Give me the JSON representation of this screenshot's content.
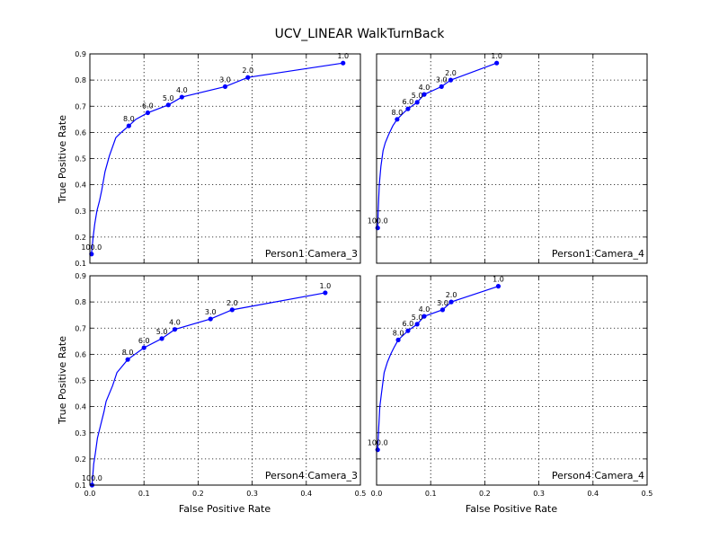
{
  "title": "UCV_LINEAR WalkTurnBack",
  "xlabel": "False Positive Rate",
  "ylabel": "True Positive Rate",
  "chart_data": [
    {
      "type": "line",
      "panel_label": "Person1 Camera_3",
      "xlim": [
        0,
        0.5
      ],
      "ylim": [
        0.1,
        0.9
      ],
      "x_ticks": [
        0,
        0.1,
        0.2,
        0.3,
        0.4,
        0.5
      ],
      "x_tick_labels": [],
      "y_ticks": [
        0.1,
        0.2,
        0.3,
        0.4,
        0.5,
        0.6,
        0.7,
        0.8,
        0.9
      ],
      "y_tick_labels": [
        "0.1",
        "0.2",
        "0.3",
        "0.4",
        "0.5",
        "0.6",
        "0.7",
        "0.8",
        "0.9"
      ],
      "grid": true,
      "color": "#0000ff",
      "x": [
        0.003,
        0.006,
        0.009,
        0.013,
        0.018,
        0.022,
        0.028,
        0.036,
        0.048,
        0.058,
        0.072,
        0.085,
        0.107,
        0.145,
        0.17,
        0.25,
        0.292,
        0.468
      ],
      "y": [
        0.135,
        0.2,
        0.25,
        0.3,
        0.34,
        0.38,
        0.45,
        0.51,
        0.58,
        0.6,
        0.625,
        0.65,
        0.675,
        0.705,
        0.735,
        0.775,
        0.81,
        0.865
      ],
      "markers": [
        {
          "x": 0.003,
          "y": 0.135,
          "label": "100.0"
        },
        {
          "x": 0.072,
          "y": 0.625,
          "label": "8.0"
        },
        {
          "x": 0.107,
          "y": 0.675,
          "label": "6.0"
        },
        {
          "x": 0.145,
          "y": 0.705,
          "label": "5.0"
        },
        {
          "x": 0.17,
          "y": 0.735,
          "label": "4.0"
        },
        {
          "x": 0.25,
          "y": 0.775,
          "label": "3.0"
        },
        {
          "x": 0.292,
          "y": 0.81,
          "label": "2.0"
        },
        {
          "x": 0.468,
          "y": 0.865,
          "label": "1.0"
        }
      ]
    },
    {
      "type": "line",
      "panel_label": "Person1 Camera_4",
      "xlim": [
        0,
        0.5
      ],
      "ylim": [
        0.1,
        0.9
      ],
      "x_ticks": [
        0,
        0.1,
        0.2,
        0.3,
        0.4,
        0.5
      ],
      "x_tick_labels": [],
      "y_ticks": [
        0.1,
        0.2,
        0.3,
        0.4,
        0.5,
        0.6,
        0.7,
        0.8,
        0.9
      ],
      "y_tick_labels": [],
      "grid": true,
      "color": "#0000ff",
      "x": [
        0.002,
        0.003,
        0.005,
        0.008,
        0.012,
        0.016,
        0.022,
        0.03,
        0.038,
        0.05,
        0.058,
        0.075,
        0.088,
        0.12,
        0.137,
        0.222
      ],
      "y": [
        0.235,
        0.3,
        0.4,
        0.47,
        0.53,
        0.56,
        0.59,
        0.625,
        0.65,
        0.675,
        0.69,
        0.715,
        0.745,
        0.775,
        0.8,
        0.865
      ],
      "markers": [
        {
          "x": 0.002,
          "y": 0.235,
          "label": "100.0"
        },
        {
          "x": 0.038,
          "y": 0.65,
          "label": "8.0"
        },
        {
          "x": 0.058,
          "y": 0.69,
          "label": "6.0"
        },
        {
          "x": 0.075,
          "y": 0.715,
          "label": "5.0"
        },
        {
          "x": 0.088,
          "y": 0.745,
          "label": "4.0"
        },
        {
          "x": 0.12,
          "y": 0.775,
          "label": "3.0"
        },
        {
          "x": 0.137,
          "y": 0.8,
          "label": "2.0"
        },
        {
          "x": 0.222,
          "y": 0.865,
          "label": "1.0"
        }
      ]
    },
    {
      "type": "line",
      "panel_label": "Person4 Camera_3",
      "xlim": [
        0,
        0.5
      ],
      "ylim": [
        0.1,
        0.9
      ],
      "x_ticks": [
        0,
        0.1,
        0.2,
        0.3,
        0.4,
        0.5
      ],
      "x_tick_labels": [
        "0.0",
        "0.1",
        "0.2",
        "0.3",
        "0.4",
        "0.5"
      ],
      "y_ticks": [
        0.1,
        0.2,
        0.3,
        0.4,
        0.5,
        0.6,
        0.7,
        0.8,
        0.9
      ],
      "y_tick_labels": [
        "0.1",
        "0.2",
        "0.3",
        "0.4",
        "0.5",
        "0.6",
        "0.7",
        "0.8",
        "0.9"
      ],
      "grid": true,
      "color": "#0000ff",
      "x": [
        0.004,
        0.007,
        0.01,
        0.014,
        0.02,
        0.026,
        0.03,
        0.036,
        0.042,
        0.05,
        0.06,
        0.07,
        0.1,
        0.133,
        0.157,
        0.223,
        0.263,
        0.435
      ],
      "y": [
        0.1,
        0.18,
        0.22,
        0.28,
        0.33,
        0.38,
        0.42,
        0.45,
        0.48,
        0.53,
        0.555,
        0.58,
        0.625,
        0.66,
        0.695,
        0.735,
        0.77,
        0.835
      ],
      "markers": [
        {
          "x": 0.004,
          "y": 0.1,
          "label": "100.0"
        },
        {
          "x": 0.07,
          "y": 0.58,
          "label": "8.0"
        },
        {
          "x": 0.1,
          "y": 0.625,
          "label": "6.0"
        },
        {
          "x": 0.133,
          "y": 0.66,
          "label": "5.0"
        },
        {
          "x": 0.157,
          "y": 0.695,
          "label": "4.0"
        },
        {
          "x": 0.223,
          "y": 0.735,
          "label": "3.0"
        },
        {
          "x": 0.263,
          "y": 0.77,
          "label": "2.0"
        },
        {
          "x": 0.435,
          "y": 0.835,
          "label": "1.0"
        }
      ]
    },
    {
      "type": "line",
      "panel_label": "Person4 Camera_4",
      "xlim": [
        0,
        0.5
      ],
      "ylim": [
        0.1,
        0.9
      ],
      "x_ticks": [
        0,
        0.1,
        0.2,
        0.3,
        0.4,
        0.5
      ],
      "x_tick_labels": [
        "0.0",
        "0.1",
        "0.2",
        "0.3",
        "0.4",
        "0.5"
      ],
      "y_ticks": [
        0.1,
        0.2,
        0.3,
        0.4,
        0.5,
        0.6,
        0.7,
        0.8,
        0.9
      ],
      "y_tick_labels": [],
      "grid": true,
      "color": "#0000ff",
      "x": [
        0.002,
        0.004,
        0.006,
        0.009,
        0.014,
        0.02,
        0.026,
        0.032,
        0.04,
        0.058,
        0.075,
        0.088,
        0.122,
        0.138,
        0.225
      ],
      "y": [
        0.235,
        0.32,
        0.4,
        0.45,
        0.53,
        0.57,
        0.6,
        0.625,
        0.655,
        0.69,
        0.715,
        0.745,
        0.77,
        0.8,
        0.86
      ],
      "markers": [
        {
          "x": 0.002,
          "y": 0.235,
          "label": "100.0"
        },
        {
          "x": 0.04,
          "y": 0.655,
          "label": "8.0"
        },
        {
          "x": 0.058,
          "y": 0.69,
          "label": "6.0"
        },
        {
          "x": 0.075,
          "y": 0.715,
          "label": "5.0"
        },
        {
          "x": 0.088,
          "y": 0.745,
          "label": "4.0"
        },
        {
          "x": 0.122,
          "y": 0.77,
          "label": "3.0"
        },
        {
          "x": 0.138,
          "y": 0.8,
          "label": "2.0"
        },
        {
          "x": 0.225,
          "y": 0.86,
          "label": "1.0"
        }
      ]
    }
  ]
}
